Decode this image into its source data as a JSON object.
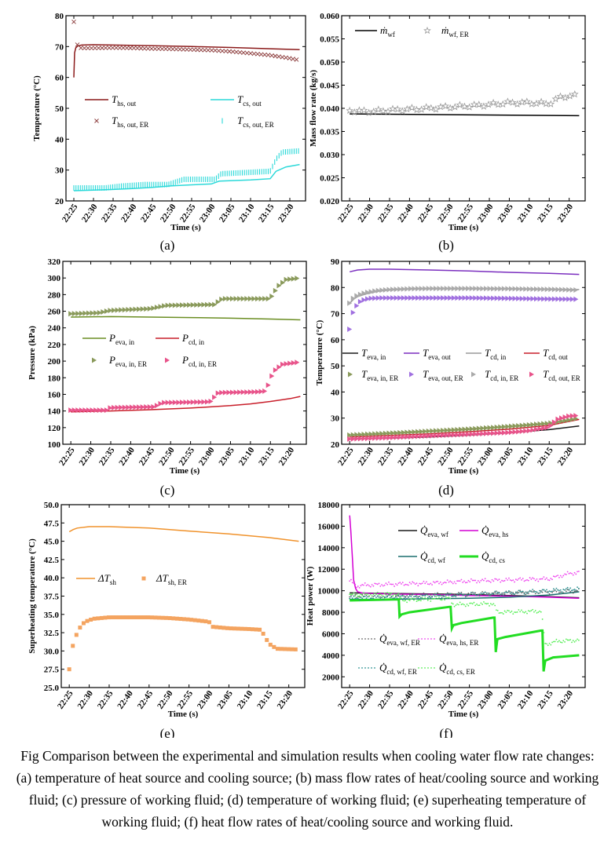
{
  "caption": "Fig Comparison between the experimental and simulation results when cooling water flow rate changes: (a) temperature of heat source and cooling source; (b) mass flow rates of heat/cooling source and working fluid; (c) pressure of working fluid; (d) temperature of working fluid; (e) superheating temperature of working fluid; (f) heat flow rates of heat/cooling source and working fluid.",
  "time_ticks": [
    "22:25",
    "22:30",
    "22:35",
    "22:40",
    "22:45",
    "22:50",
    "22:55",
    "23:00",
    "23:05",
    "23:10",
    "23:15",
    "23:20"
  ],
  "chart_data": [
    {
      "panel": "a",
      "type": "line",
      "label": "(a)",
      "xlabel": "Time (s)",
      "ylabel": "Temperature (°C)",
      "ylim": [
        20,
        80
      ],
      "yticks": [
        20,
        30,
        40,
        50,
        60,
        70,
        80
      ],
      "series": [
        {
          "name": "T",
          "sub": "hs, out",
          "style": "line",
          "color": "#8b1a1a",
          "x": [
            0,
            0.2,
            0.5,
            1,
            2,
            5,
            10,
            20,
            30,
            40,
            50,
            57.5
          ],
          "y": [
            60,
            68,
            69.6,
            70.2,
            70.5,
            70.6,
            70.5,
            70.3,
            70,
            69.7,
            69.3,
            69
          ]
        },
        {
          "name": "T",
          "sub": "cs, out",
          "style": "line",
          "color": "#2bd9d9",
          "x": [
            0,
            5,
            10,
            15,
            20,
            25,
            30,
            35,
            37,
            45,
            50,
            51.5,
            54,
            57.5
          ],
          "y": [
            23.3,
            23.5,
            23.7,
            24,
            24.4,
            24.9,
            25.2,
            25.5,
            26.4,
            26.8,
            27.2,
            29.6,
            31,
            31.8
          ]
        },
        {
          "name": "T",
          "sub": "hs, out, ER",
          "style": "x",
          "color": "#8b3a3a",
          "x": [
            0,
            1,
            2,
            5,
            10,
            15,
            20,
            25,
            30,
            35,
            40,
            45,
            50,
            55,
            57.5
          ],
          "y": [
            78,
            69.8,
            69.5,
            69.5,
            69.6,
            69.5,
            69.3,
            69.2,
            69,
            68.8,
            68.4,
            67.8,
            67.2,
            66.2,
            65.6
          ]
        },
        {
          "name": "T",
          "sub": "cs, out, ER",
          "style": "vbar",
          "color": "#2bd9d9",
          "x": [
            0,
            8,
            12,
            18,
            24,
            28,
            36,
            37.5,
            44,
            50,
            51.5,
            53,
            57.5
          ],
          "y": [
            24.2,
            24.2,
            24.8,
            25.3,
            25.3,
            27,
            27,
            28.8,
            29.2,
            29.6,
            33.5,
            35.8,
            36.2
          ]
        }
      ]
    },
    {
      "panel": "b",
      "type": "line",
      "label": "(b)",
      "xlabel": "Time (s)",
      "ylabel": "Mass flow rate (kg/s)",
      "ylim": [
        0.02,
        0.06
      ],
      "yticks": [
        "0.020",
        "0.025",
        "0.030",
        "0.035",
        "0.040",
        "0.045",
        "0.050",
        "0.055",
        "0.060"
      ],
      "series": [
        {
          "name": "ṁ",
          "sub": "wf",
          "style": "line",
          "color": "#000000",
          "x": [
            0,
            57.5
          ],
          "y": [
            0.0388,
            0.0384
          ]
        },
        {
          "name": "ṁ",
          "sub": "wf, ER",
          "style": "star",
          "color": "#999999",
          "x": [
            0,
            5,
            10,
            15,
            20,
            25,
            30,
            35,
            40,
            45,
            50,
            53,
            57.5
          ],
          "y": [
            0.0395,
            0.0393,
            0.0396,
            0.0398,
            0.04,
            0.0403,
            0.0405,
            0.0408,
            0.0412,
            0.0412,
            0.041,
            0.0425,
            0.0428
          ]
        }
      ]
    },
    {
      "panel": "c",
      "type": "line",
      "label": "(c)",
      "xlabel": "Time (s)",
      "ylabel": "Pressure (kPa)",
      "ylim": [
        100,
        320
      ],
      "yticks": [
        100,
        120,
        140,
        160,
        180,
        200,
        220,
        240,
        260,
        280,
        300,
        320
      ],
      "series": [
        {
          "name": "P",
          "sub": "eva, in",
          "style": "line",
          "color": "#6b8e23",
          "x": [
            0,
            10,
            20,
            30,
            40,
            50,
            57.5
          ],
          "y": [
            253,
            253.5,
            253,
            252.4,
            251.6,
            250.6,
            249.7
          ]
        },
        {
          "name": "P",
          "sub": "cd, in",
          "style": "line",
          "color": "#c81e2a",
          "x": [
            0,
            10,
            20,
            30,
            40,
            45,
            50,
            55,
            57.5
          ],
          "y": [
            139,
            140,
            141.5,
            143.5,
            146.5,
            148.5,
            151.5,
            155,
            157.5
          ]
        },
        {
          "name": "P",
          "sub": "eva, in, ER",
          "style": "tri",
          "color": "#8a9a5b",
          "x": [
            0,
            7,
            10,
            20,
            24,
            36,
            38,
            50,
            52,
            54,
            57.5
          ],
          "y": [
            257,
            258,
            261,
            263,
            267,
            268,
            275,
            275,
            290,
            298,
            300
          ]
        },
        {
          "name": "P",
          "sub": "cd, in, ER",
          "style": "tri",
          "color": "#e8538a",
          "x": [
            0,
            9,
            10,
            21,
            23,
            35,
            37,
            47,
            49,
            50,
            51,
            53,
            57.5
          ],
          "y": [
            141,
            141,
            144,
            145,
            150,
            151,
            162,
            163,
            164,
            178,
            188,
            196,
            199
          ]
        }
      ]
    },
    {
      "panel": "d",
      "type": "line",
      "label": "(d)",
      "xlabel": "Time (s)",
      "ylabel": "Temperature (°C)",
      "ylim": [
        20,
        90
      ],
      "yticks": [
        20,
        30,
        40,
        50,
        60,
        70,
        80,
        90
      ],
      "series": [
        {
          "name": "T",
          "sub": "eva, in",
          "style": "line",
          "color": "#1a1a1a",
          "x": [
            0,
            10,
            20,
            30,
            40,
            50,
            57.5
          ],
          "y": [
            22,
            22.3,
            22.8,
            23.5,
            24.4,
            25.6,
            27
          ]
        },
        {
          "name": "T",
          "sub": "eva, out",
          "style": "line",
          "color": "#7b2fbf",
          "x": [
            0,
            2,
            5,
            10,
            20,
            30,
            40,
            50,
            57.5
          ],
          "y": [
            86,
            86.7,
            87,
            87,
            86.7,
            86.3,
            85.8,
            85.4,
            85
          ]
        },
        {
          "name": "T",
          "sub": "cd, in",
          "style": "line",
          "color": "#999999",
          "x": [
            0,
            1,
            2,
            4,
            7,
            10,
            15,
            20,
            30,
            40,
            50,
            57.5
          ],
          "y": [
            74,
            75.5,
            76.5,
            77.5,
            78.5,
            79,
            79.4,
            79.5,
            79.5,
            79.5,
            79.3,
            79.2
          ]
        },
        {
          "name": "T",
          "sub": "cd, out",
          "style": "line",
          "color": "#c81e2a",
          "x": [
            0,
            10,
            20,
            30,
            40,
            50,
            57.5
          ],
          "y": [
            22.8,
            23.4,
            24,
            24.8,
            25.8,
            27.2,
            29.5
          ]
        },
        {
          "name": "T",
          "sub": "eva, in, ER",
          "style": "tri",
          "color": "#8a9a5b",
          "x": [
            0,
            10,
            20,
            30,
            40,
            50,
            57.5
          ],
          "y": [
            23.5,
            24.2,
            25,
            25.8,
            26.8,
            28,
            30
          ]
        },
        {
          "name": "T",
          "sub": "eva, out, ER",
          "style": "tri",
          "color": "#a070e0",
          "x": [
            0,
            0.5,
            1,
            2,
            3,
            5,
            8,
            12,
            20,
            30,
            40,
            50,
            57.5
          ],
          "y": [
            64,
            68,
            71,
            73.5,
            75,
            75.8,
            76,
            76,
            76,
            76,
            75.8,
            75.6,
            75.5
          ]
        },
        {
          "name": "T",
          "sub": "cd, in, ER",
          "style": "tri",
          "color": "#aaaaaa",
          "x": [
            0,
            1,
            2,
            4,
            7,
            10,
            15,
            20,
            30,
            40,
            50,
            57.5
          ],
          "y": [
            74,
            76,
            77,
            78,
            78.8,
            79.2,
            79.5,
            79.6,
            79.6,
            79.5,
            79.3,
            79
          ]
        },
        {
          "name": "T",
          "sub": "cd, out, ER",
          "style": "tri",
          "color": "#e8538a",
          "x": [
            0,
            10,
            20,
            30,
            40,
            45,
            50,
            52,
            55,
            57.5
          ],
          "y": [
            22,
            22.5,
            23.2,
            23.8,
            24.5,
            25.2,
            26.5,
            29.5,
            30.8,
            31
          ]
        }
      ]
    },
    {
      "panel": "e",
      "type": "line",
      "label": "(e)",
      "xlabel": "Time (s)",
      "ylabel": "Superheating temperature (°C)",
      "ylim": [
        25,
        50
      ],
      "yticks": [
        "25.0",
        "27.5",
        "30.0",
        "32.5",
        "35.0",
        "37.5",
        "40.0",
        "42.5",
        "45.0",
        "47.5",
        "50.0"
      ],
      "series": [
        {
          "name": "ΔT",
          "sub": "sh",
          "style": "line",
          "color": "#f0922b",
          "x": [
            0,
            1,
            2,
            5,
            10,
            15,
            20,
            30,
            40,
            50,
            57.5
          ],
          "y": [
            46.3,
            46.6,
            46.8,
            47,
            47,
            46.9,
            46.8,
            46.4,
            46,
            45.5,
            45
          ]
        },
        {
          "name": "ΔT",
          "sub": "sh, ER",
          "style": "sq",
          "color": "#f4a460",
          "x": [
            0,
            0.5,
            1,
            2,
            3,
            4,
            6,
            10,
            15,
            20,
            25,
            30,
            35,
            36,
            40,
            45,
            48,
            49,
            50,
            52,
            57.5
          ],
          "y": [
            27.5,
            29.5,
            31,
            32.5,
            33.5,
            34,
            34.4,
            34.6,
            34.6,
            34.6,
            34.5,
            34.3,
            34,
            33.3,
            33.1,
            33,
            32.9,
            32,
            31,
            30.3,
            30.2
          ]
        }
      ]
    },
    {
      "panel": "f",
      "type": "line",
      "label": "(f)",
      "xlabel": "Time (s)",
      "ylabel": "Heat power (W)",
      "ylim": [
        1000,
        18000
      ],
      "yticks": [
        2000,
        4000,
        6000,
        8000,
        10000,
        12000,
        14000,
        16000,
        18000
      ],
      "series": [
        {
          "name": "Q̇",
          "sub": "eva, wf",
          "style": "line",
          "color": "#1a1a1a",
          "x": [
            0,
            10,
            20,
            30,
            40,
            50,
            57.5
          ],
          "y": [
            9800,
            9750,
            9700,
            9650,
            9550,
            9450,
            9350
          ]
        },
        {
          "name": "Q̇",
          "sub": "eva, hs",
          "style": "line",
          "color": "#d400d4",
          "x": [
            0,
            0.3,
            0.7,
            1,
            1.5,
            2,
            3,
            5,
            10,
            20,
            30,
            40,
            50,
            57.5
          ],
          "y": [
            17000,
            15500,
            13000,
            11000,
            10200,
            9900,
            9800,
            9750,
            9700,
            9650,
            9550,
            9500,
            9400,
            9300
          ]
        },
        {
          "name": "Q̇",
          "sub": "cd, wf",
          "style": "line",
          "color": "#1a6e6e",
          "x": [
            0,
            10,
            20,
            30,
            40,
            50,
            57.5
          ],
          "y": [
            9200,
            9200,
            9250,
            9300,
            9400,
            9600,
            9900
          ]
        },
        {
          "name": "Q̇",
          "sub": "cd, cs",
          "style": "line",
          "color": "#22dd22",
          "x": [
            0,
            12.3,
            12.5,
            13,
            15,
            25,
            25.3,
            25.6,
            26,
            28,
            36,
            36.3,
            36.6,
            37,
            39,
            48,
            48.3,
            48.6,
            49,
            51,
            57.5
          ],
          "y": [
            9100,
            9200,
            7600,
            7800,
            8000,
            8500,
            8500,
            6500,
            6800,
            7000,
            7500,
            7500,
            4300,
            5500,
            5700,
            6300,
            6300,
            2500,
            3500,
            3800,
            4000
          ]
        },
        {
          "name": "Q̇",
          "sub": "eva, wf, ER",
          "style": "dot",
          "color": "#666666",
          "x": [
            0,
            10,
            20,
            30,
            40,
            50,
            57.5
          ],
          "y": [
            9500,
            9500,
            9600,
            9700,
            9800,
            9900,
            10000
          ]
        },
        {
          "name": "Q̇",
          "sub": "eva, hs, ER",
          "style": "dot",
          "color": "#ee44ee",
          "x": [
            0,
            1,
            2,
            3,
            10,
            20,
            30,
            40,
            50,
            55,
            57.5
          ],
          "y": [
            11000,
            10600,
            10400,
            10500,
            10600,
            10700,
            10900,
            11000,
            11100,
            11600,
            11700
          ]
        },
        {
          "name": "Q̇",
          "sub": "cd, wf, ER",
          "style": "dot",
          "color": "#2a8f8f",
          "x": [
            0,
            10,
            20,
            30,
            40,
            50,
            57.5
          ],
          "y": [
            9300,
            9400,
            9500,
            9650,
            9800,
            10000,
            10200
          ]
        },
        {
          "name": "Q̇",
          "sub": "cd, cs, ER",
          "style": "dot",
          "color": "#55ee55",
          "x": [
            0,
            12,
            13,
            25,
            26,
            36,
            37,
            48,
            49,
            52,
            57.5
          ],
          "y": [
            9600,
            9700,
            9100,
            9300,
            8700,
            8800,
            8000,
            8100,
            5000,
            5300,
            5400
          ]
        }
      ]
    }
  ]
}
